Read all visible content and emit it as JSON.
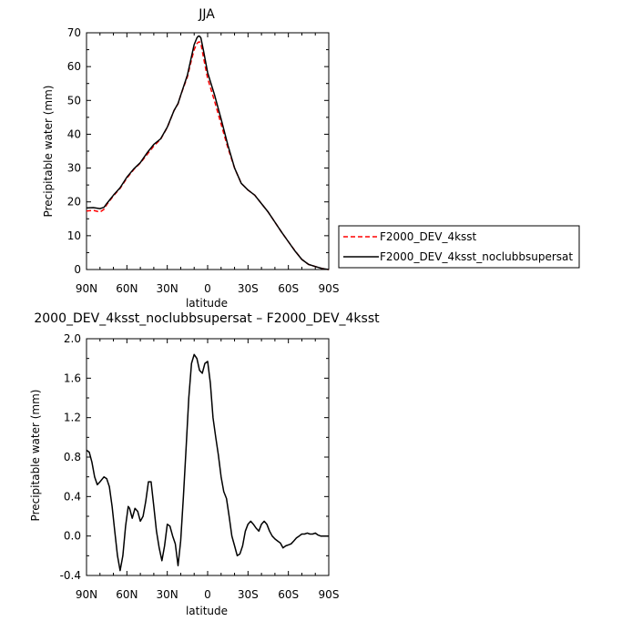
{
  "chart_data": [
    {
      "type": "line",
      "title": "JJA",
      "xlabel": "latitude",
      "ylabel": "Precipitable water (mm)",
      "x_ticks": [
        90,
        60,
        30,
        0,
        -30,
        -60,
        -90
      ],
      "x_tick_labels": [
        "90N",
        "60N",
        "30N",
        "0",
        "30S",
        "60S",
        "90S"
      ],
      "xlim": [
        90,
        -90
      ],
      "ylim": [
        0,
        70
      ],
      "y_ticks": [
        0,
        10,
        20,
        30,
        40,
        50,
        60,
        70
      ],
      "y_tick_labels": [
        "0",
        "10",
        "20",
        "30",
        "40",
        "50",
        "60",
        "70"
      ],
      "legend_position": "right",
      "series": [
        {
          "name": "F2000_DEV_4ksst",
          "color": "#ff0000",
          "dash": "dashed",
          "x": [
            90,
            85,
            80,
            77,
            75,
            70,
            65,
            60,
            55,
            50,
            45,
            40,
            35,
            30,
            25,
            22,
            20,
            15,
            12,
            10,
            8,
            7,
            6,
            5,
            3,
            0,
            -5,
            -10,
            -15,
            -20,
            -25,
            -30,
            -35,
            -40,
            -45,
            -50,
            -55,
            -60,
            -65,
            -70,
            -75,
            -80,
            -85,
            -90
          ],
          "y": [
            17.3,
            17.5,
            17.0,
            17.8,
            19.2,
            21.8,
            24.0,
            27.0,
            29.5,
            31.5,
            34.0,
            36.5,
            38.5,
            42.0,
            47.0,
            49.0,
            51.5,
            57.0,
            62.0,
            65.0,
            66.8,
            67.2,
            67.3,
            66.8,
            62.5,
            56.5,
            50.0,
            43.0,
            36.0,
            30.0,
            25.5,
            23.5,
            22.0,
            19.5,
            17.0,
            14.0,
            11.0,
            8.2,
            5.5,
            3.0,
            1.5,
            0.9,
            0.3,
            0.0
          ]
        },
        {
          "name": "F2000_DEV_4ksst_noclubbsupersat",
          "color": "#000000",
          "dash": "solid",
          "x": [
            90,
            85,
            80,
            77,
            75,
            70,
            65,
            60,
            55,
            50,
            45,
            40,
            35,
            30,
            25,
            22,
            20,
            15,
            12,
            10,
            8,
            7,
            6,
            5,
            3,
            0,
            -5,
            -10,
            -15,
            -20,
            -25,
            -30,
            -35,
            -40,
            -45,
            -50,
            -55,
            -60,
            -65,
            -70,
            -75,
            -80,
            -85,
            -90
          ],
          "y": [
            18.2,
            18.3,
            18.0,
            18.4,
            19.5,
            22.0,
            24.2,
            27.3,
            29.7,
            31.6,
            34.5,
            37.0,
            38.6,
            42.1,
            47.0,
            49.1,
            51.5,
            57.5,
            63.0,
            66.5,
            68.5,
            69.0,
            69.0,
            68.5,
            64.5,
            58.2,
            51.8,
            44.5,
            36.8,
            30.0,
            25.5,
            23.5,
            22.0,
            19.5,
            17.0,
            14.0,
            11.0,
            8.2,
            5.4,
            3.0,
            1.5,
            0.9,
            0.3,
            0.0
          ]
        }
      ]
    },
    {
      "type": "line",
      "title": "2000_DEV_4ksst_noclubbsupersat – F2000_DEV_4ksst",
      "xlabel": "latitude",
      "ylabel": "Precipitable water (mm)",
      "x_ticks": [
        90,
        60,
        30,
        0,
        -30,
        -60,
        -90
      ],
      "x_tick_labels": [
        "90N",
        "60N",
        "30N",
        "0",
        "30S",
        "60S",
        "90S"
      ],
      "xlim": [
        90,
        -90
      ],
      "ylim": [
        -0.4,
        2.0
      ],
      "y_ticks": [
        -0.4,
        0.0,
        0.4,
        0.8,
        1.2,
        1.6,
        2.0
      ],
      "y_tick_labels": [
        "-0.4",
        "0.0",
        "0.4",
        "0.8",
        "1.2",
        "1.6",
        "2.0"
      ],
      "series": [
        {
          "name": "",
          "color": "#000000",
          "dash": "solid",
          "x": [
            90,
            88,
            86,
            84,
            82,
            80,
            77,
            75,
            73,
            71,
            69,
            67,
            65,
            63,
            61,
            59,
            58,
            56,
            54,
            52,
            50,
            48,
            46,
            44,
            42,
            40,
            38,
            36,
            34,
            32,
            30,
            28,
            26,
            24,
            22,
            20,
            18,
            16,
            14,
            12,
            10,
            8,
            6,
            4,
            2,
            0,
            -2,
            -4,
            -6,
            -8,
            -10,
            -12,
            -14,
            -16,
            -18,
            -20,
            -22,
            -24,
            -26,
            -28,
            -30,
            -32,
            -34,
            -36,
            -38,
            -40,
            -42,
            -44,
            -46,
            -48,
            -50,
            -52,
            -54,
            -56,
            -58,
            -60,
            -62,
            -64,
            -66,
            -68,
            -70,
            -72,
            -74,
            -76,
            -78,
            -80,
            -82,
            -84,
            -86,
            -88,
            -90
          ],
          "y": [
            0.87,
            0.85,
            0.75,
            0.6,
            0.52,
            0.55,
            0.6,
            0.58,
            0.5,
            0.3,
            0.05,
            -0.2,
            -0.35,
            -0.2,
            0.1,
            0.3,
            0.28,
            0.18,
            0.28,
            0.25,
            0.15,
            0.2,
            0.35,
            0.55,
            0.55,
            0.3,
            0.05,
            -0.12,
            -0.25,
            -0.1,
            0.12,
            0.1,
            0.0,
            -0.08,
            -0.3,
            -0.05,
            0.4,
            0.9,
            1.4,
            1.75,
            1.84,
            1.8,
            1.68,
            1.65,
            1.75,
            1.77,
            1.55,
            1.2,
            1.0,
            0.82,
            0.6,
            0.45,
            0.38,
            0.2,
            0.0,
            -0.1,
            -0.2,
            -0.18,
            -0.1,
            0.05,
            0.12,
            0.15,
            0.12,
            0.08,
            0.05,
            0.12,
            0.15,
            0.12,
            0.05,
            0.0,
            -0.03,
            -0.05,
            -0.07,
            -0.12,
            -0.1,
            -0.09,
            -0.08,
            -0.05,
            -0.02,
            0.0,
            0.02,
            0.02,
            0.03,
            0.02,
            0.02,
            0.03,
            0.01,
            0.0,
            0.0,
            0.0,
            0.0
          ]
        }
      ]
    }
  ]
}
